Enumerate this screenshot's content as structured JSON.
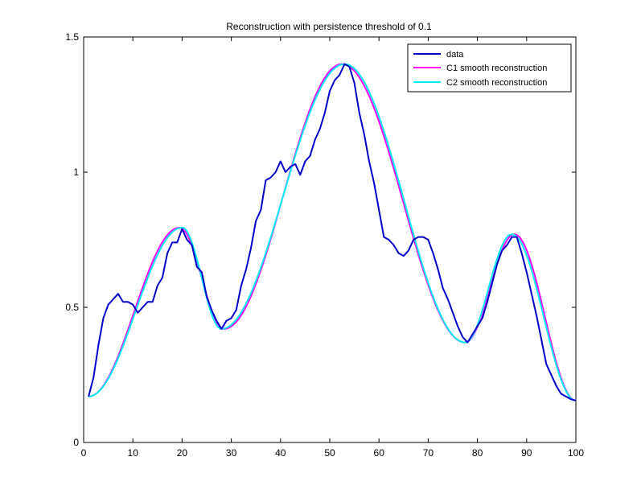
{
  "chart_data": {
    "type": "line",
    "title": "Reconstruction with persistence threshold of 0.1",
    "xlabel": "",
    "ylabel": "",
    "xlim": [
      0,
      100
    ],
    "ylim": [
      0,
      1.5
    ],
    "xticks": [
      0,
      10,
      20,
      30,
      40,
      50,
      60,
      70,
      80,
      90,
      100
    ],
    "xtick_labels": [
      "0",
      "10",
      "20",
      "30",
      "40",
      "50",
      "60",
      "70",
      "80",
      "90",
      "100"
    ],
    "yticks": [
      0,
      0.5,
      1,
      1.5
    ],
    "ytick_labels": [
      "0",
      "0.5",
      "1",
      "1.5"
    ],
    "grid": false,
    "legend_position": "top-right",
    "series": [
      {
        "name": "data",
        "color": "#0000cc",
        "x": [
          1,
          2,
          3,
          4,
          5,
          6,
          7,
          8,
          9,
          10,
          11,
          12,
          13,
          14,
          15,
          16,
          17,
          18,
          19,
          20,
          21,
          22,
          23,
          24,
          25,
          26,
          27,
          28,
          29,
          30,
          31,
          32,
          33,
          34,
          35,
          36,
          37,
          38,
          39,
          40,
          41,
          42,
          43,
          44,
          45,
          46,
          47,
          48,
          49,
          50,
          51,
          52,
          53,
          54,
          55,
          56,
          57,
          58,
          59,
          60,
          61,
          62,
          63,
          64,
          65,
          66,
          67,
          68,
          69,
          70,
          71,
          72,
          73,
          74,
          75,
          76,
          77,
          78,
          79,
          80,
          81,
          82,
          83,
          84,
          85,
          86,
          87,
          88,
          89,
          90,
          91,
          92,
          93,
          94,
          95,
          96,
          97,
          98,
          99,
          100
        ],
        "y": [
          0.17,
          0.24,
          0.36,
          0.46,
          0.51,
          0.53,
          0.55,
          0.52,
          0.52,
          0.51,
          0.48,
          0.5,
          0.52,
          0.52,
          0.58,
          0.61,
          0.7,
          0.74,
          0.74,
          0.79,
          0.75,
          0.73,
          0.65,
          0.63,
          0.54,
          0.49,
          0.45,
          0.42,
          0.45,
          0.46,
          0.49,
          0.58,
          0.64,
          0.72,
          0.82,
          0.86,
          0.97,
          0.98,
          1.0,
          1.04,
          1.0,
          1.02,
          1.03,
          0.99,
          1.04,
          1.06,
          1.12,
          1.16,
          1.22,
          1.3,
          1.34,
          1.36,
          1.4,
          1.39,
          1.33,
          1.22,
          1.14,
          1.04,
          0.96,
          0.86,
          0.76,
          0.75,
          0.73,
          0.7,
          0.69,
          0.71,
          0.75,
          0.76,
          0.76,
          0.75,
          0.7,
          0.64,
          0.57,
          0.53,
          0.48,
          0.43,
          0.39,
          0.37,
          0.4,
          0.43,
          0.46,
          0.52,
          0.59,
          0.66,
          0.71,
          0.73,
          0.76,
          0.76,
          0.7,
          0.63,
          0.55,
          0.47,
          0.38,
          0.29,
          0.25,
          0.21,
          0.18,
          0.17,
          0.16,
          0.155
        ]
      },
      {
        "name": "C1 smooth reconstruction",
        "color": "#ff00ff",
        "knots": [
          [
            1,
            0.17
          ],
          [
            19.5,
            0.795
          ],
          [
            28.5,
            0.42
          ],
          [
            52.5,
            1.4
          ],
          [
            77.5,
            0.37
          ],
          [
            87.5,
            0.77
          ],
          [
            100,
            0.155
          ]
        ]
      },
      {
        "name": "C2 smooth reconstruction",
        "color": "#00eeee",
        "knots": [
          [
            1,
            0.17
          ],
          [
            20,
            0.795
          ],
          [
            28,
            0.42
          ],
          [
            53,
            1.4
          ],
          [
            77.5,
            0.37
          ],
          [
            87,
            0.77
          ],
          [
            100,
            0.155
          ]
        ]
      }
    ]
  }
}
